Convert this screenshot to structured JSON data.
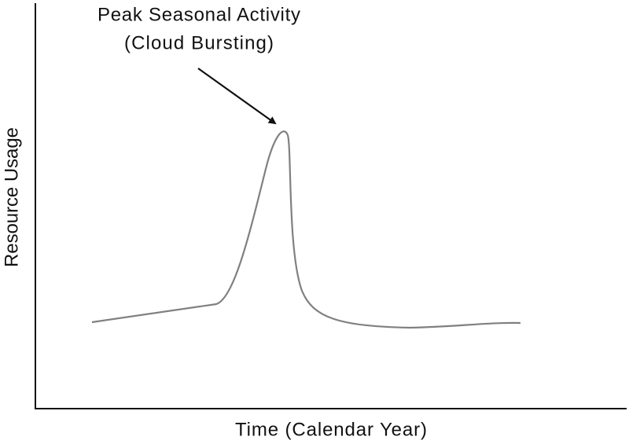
{
  "annotation": {
    "line1": "Peak Seasonal Activity",
    "line2": "(Cloud Bursting)"
  },
  "axes": {
    "y_label": "Resource Usage",
    "x_label": "Time (Calendar Year)"
  }
}
